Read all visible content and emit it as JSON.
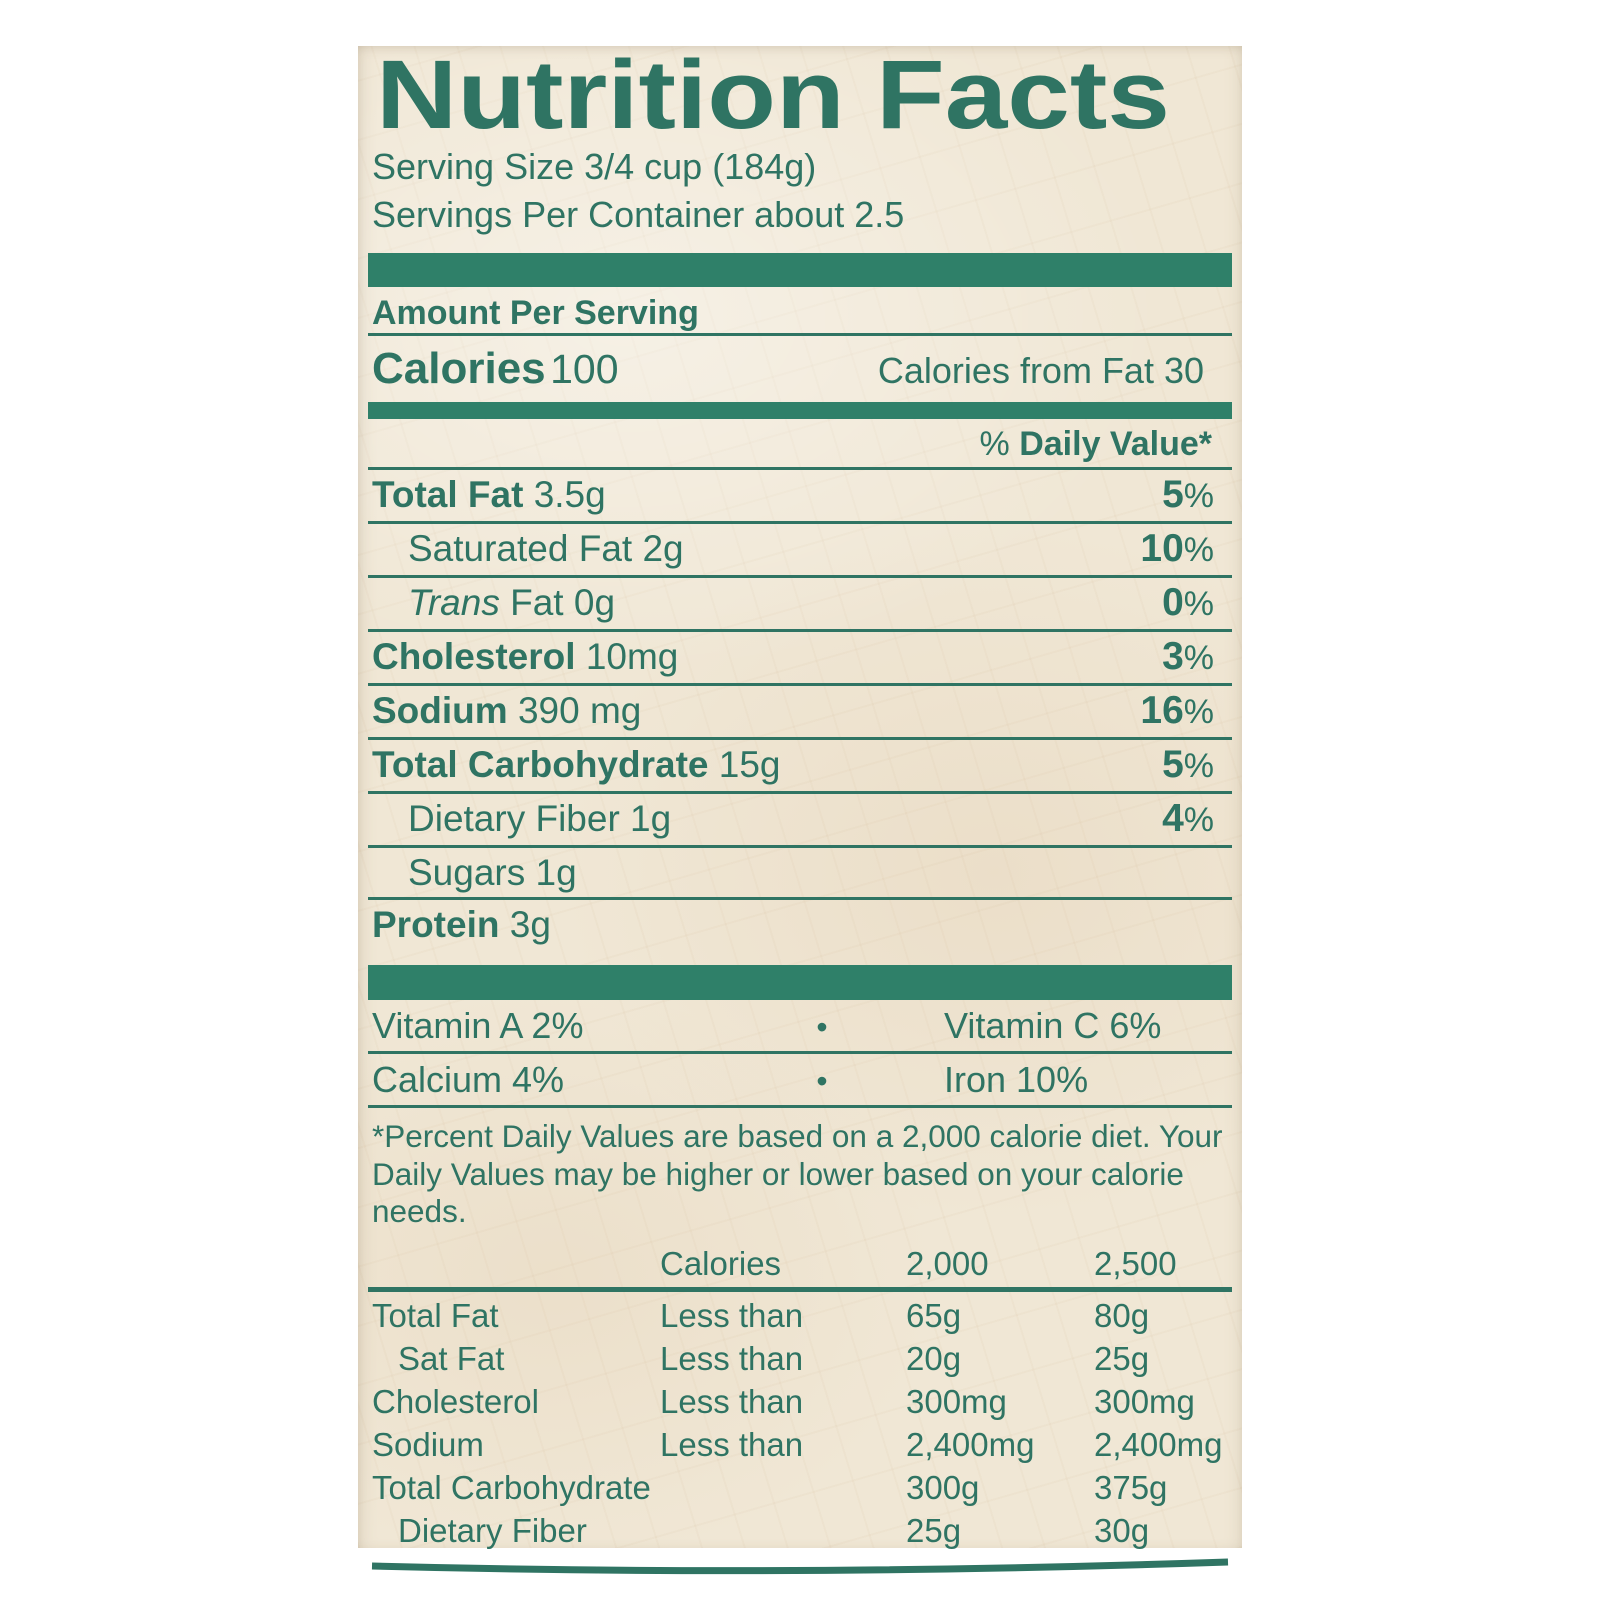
{
  "label": {
    "title": "Nutrition Facts",
    "serving_size": "Serving Size 3/4 cup (184g)",
    "servings_per_container": "Servings Per Container about 2.5",
    "amount_per_serving": "Amount Per Serving",
    "calories_label": "Calories",
    "calories_value": "100",
    "calories_from_fat": "Calories from Fat 30",
    "daily_value_pct": "%",
    "daily_value_label": "Daily Value*",
    "nutrients": [
      {
        "bold": "Total Fat",
        "italic": "",
        "plain": "",
        "amount": "3.5g",
        "dv": "5",
        "indent": false,
        "last": false
      },
      {
        "bold": "",
        "italic": "",
        "plain": "Saturated Fat",
        "amount": "2g",
        "dv": "10",
        "indent": true,
        "last": false
      },
      {
        "bold": "",
        "italic": "Trans",
        "plain": " Fat",
        "amount": "0g",
        "dv": "0",
        "indent": true,
        "last": false
      },
      {
        "bold": "Cholesterol",
        "italic": "",
        "plain": "",
        "amount": "10mg",
        "dv": "3",
        "indent": false,
        "last": false
      },
      {
        "bold": "Sodium",
        "italic": "",
        "plain": "",
        "amount": "390 mg",
        "dv": "16",
        "indent": false,
        "last": false
      },
      {
        "bold": "Total Carbohydrate",
        "italic": "",
        "plain": "",
        "amount": "15g",
        "dv": "5",
        "indent": false,
        "last": false
      },
      {
        "bold": "",
        "italic": "",
        "plain": "Dietary Fiber",
        "amount": "1g",
        "dv": "4",
        "indent": true,
        "last": false
      },
      {
        "bold": "",
        "italic": "",
        "plain": "Sugars",
        "amount": "1g",
        "dv": "",
        "indent": true,
        "last": false
      },
      {
        "bold": "Protein",
        "italic": "",
        "plain": "",
        "amount": "3g",
        "dv": "",
        "indent": false,
        "last": true
      }
    ],
    "vitamins": [
      {
        "left": "Vitamin A 2%",
        "separator": "•",
        "right": "Vitamin C 6%"
      },
      {
        "left": "Calcium 4%",
        "separator": "•",
        "right": "Iron 10%"
      }
    ],
    "footnote": "*Percent Daily Values are based on a 2,000 calorie diet. Your Daily Values may be higher or lower based on your calorie needs.",
    "footer_table": {
      "header": [
        "",
        "Calories",
        "2,000",
        "2,500"
      ],
      "rows": [
        {
          "label": "Total Fat",
          "qualifier": "Less than",
          "v2000": "65g",
          "v2500": "80g",
          "indent": false
        },
        {
          "label": "Sat Fat",
          "qualifier": "Less than",
          "v2000": "20g",
          "v2500": "25g",
          "indent": true
        },
        {
          "label": "Cholesterol",
          "qualifier": "Less than",
          "v2000": "300mg",
          "v2500": "300mg",
          "indent": false
        },
        {
          "label": "Sodium",
          "qualifier": "Less than",
          "v2000": "2,400mg",
          "v2500": "2,400mg",
          "indent": false
        },
        {
          "label": "Total Carbohydrate",
          "qualifier": "",
          "v2000": "300g",
          "v2500": "375g",
          "indent": false
        },
        {
          "label": "Dietary Fiber",
          "qualifier": "",
          "v2000": "25g",
          "v2500": "30g",
          "indent": true
        }
      ]
    }
  },
  "colors": {
    "green_text": "#2f7463",
    "green_bar": "#2f8069",
    "paper": "#f0e7d5"
  }
}
